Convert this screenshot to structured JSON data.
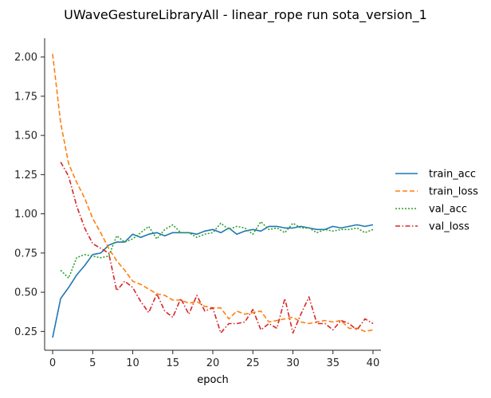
{
  "chart_data": {
    "type": "line",
    "title": "UWaveGestureLibraryAll - linear_rope run sota_version_1",
    "xlabel": "epoch",
    "ylabel": "",
    "xlim": [
      -1,
      41
    ],
    "ylim": [
      0.13,
      2.12
    ],
    "xticks": [
      0,
      5,
      10,
      15,
      20,
      25,
      30,
      35,
      40
    ],
    "yticks": [
      0.25,
      0.5,
      0.75,
      1.0,
      1.25,
      1.5,
      1.75,
      2.0
    ],
    "ytick_labels": [
      "0.25",
      "0.50",
      "0.75",
      "1.00",
      "1.25",
      "1.50",
      "1.75",
      "2.00"
    ],
    "grid": false,
    "legend_position": "right",
    "series": [
      {
        "name": "train_acc",
        "color": "#1f77b4",
        "dash": "solid",
        "x": [
          0,
          1,
          2,
          3,
          4,
          5,
          6,
          7,
          8,
          9,
          10,
          11,
          12,
          13,
          14,
          15,
          16,
          17,
          18,
          19,
          20,
          21,
          22,
          23,
          24,
          25,
          26,
          27,
          28,
          29,
          30,
          31,
          32,
          33,
          34,
          35,
          36,
          37,
          38,
          39,
          40
        ],
        "values": [
          0.21,
          0.46,
          0.53,
          0.61,
          0.67,
          0.74,
          0.75,
          0.8,
          0.82,
          0.82,
          0.87,
          0.85,
          0.87,
          0.88,
          0.86,
          0.88,
          0.88,
          0.88,
          0.87,
          0.89,
          0.9,
          0.88,
          0.91,
          0.87,
          0.89,
          0.9,
          0.89,
          0.92,
          0.92,
          0.91,
          0.91,
          0.92,
          0.91,
          0.9,
          0.9,
          0.92,
          0.91,
          0.92,
          0.93,
          0.92,
          0.93
        ]
      },
      {
        "name": "train_loss",
        "color": "#ff7f0e",
        "dash": "dashed",
        "x": [
          0,
          1,
          2,
          3,
          4,
          5,
          6,
          7,
          8,
          9,
          10,
          11,
          12,
          13,
          14,
          15,
          16,
          17,
          18,
          19,
          20,
          21,
          22,
          23,
          24,
          25,
          26,
          27,
          28,
          29,
          30,
          31,
          32,
          33,
          34,
          35,
          36,
          37,
          38,
          39,
          40
        ],
        "values": [
          2.02,
          1.58,
          1.32,
          1.2,
          1.1,
          0.97,
          0.88,
          0.78,
          0.7,
          0.64,
          0.57,
          0.55,
          0.52,
          0.49,
          0.48,
          0.45,
          0.45,
          0.43,
          0.44,
          0.41,
          0.4,
          0.4,
          0.33,
          0.38,
          0.36,
          0.37,
          0.38,
          0.31,
          0.32,
          0.33,
          0.34,
          0.31,
          0.3,
          0.31,
          0.32,
          0.31,
          0.32,
          0.27,
          0.27,
          0.25,
          0.26
        ]
      },
      {
        "name": "val_acc",
        "color": "#2ca02c",
        "dash": "dotted",
        "x": [
          1,
          2,
          3,
          4,
          5,
          6,
          7,
          8,
          9,
          10,
          11,
          12,
          13,
          14,
          15,
          16,
          17,
          18,
          19,
          20,
          21,
          22,
          23,
          24,
          25,
          26,
          27,
          28,
          29,
          30,
          31,
          32,
          33,
          34,
          35,
          36,
          37,
          38,
          39,
          40
        ],
        "values": [
          0.64,
          0.59,
          0.72,
          0.74,
          0.73,
          0.72,
          0.73,
          0.86,
          0.82,
          0.84,
          0.88,
          0.92,
          0.84,
          0.9,
          0.93,
          0.88,
          0.88,
          0.85,
          0.87,
          0.88,
          0.94,
          0.9,
          0.92,
          0.91,
          0.87,
          0.95,
          0.9,
          0.91,
          0.88,
          0.94,
          0.91,
          0.91,
          0.88,
          0.9,
          0.89,
          0.9,
          0.9,
          0.91,
          0.88,
          0.9
        ]
      },
      {
        "name": "val_loss",
        "color": "#d62728",
        "dash": "dashdot",
        "x": [
          1,
          2,
          3,
          4,
          5,
          6,
          7,
          8,
          9,
          10,
          11,
          12,
          13,
          14,
          15,
          16,
          17,
          18,
          19,
          20,
          21,
          22,
          23,
          24,
          25,
          26,
          27,
          28,
          29,
          30,
          31,
          32,
          33,
          34,
          35,
          36,
          37,
          38,
          39,
          40
        ],
        "values": [
          1.33,
          1.24,
          1.05,
          0.91,
          0.81,
          0.78,
          0.75,
          0.51,
          0.57,
          0.53,
          0.44,
          0.37,
          0.49,
          0.38,
          0.34,
          0.46,
          0.36,
          0.48,
          0.38,
          0.4,
          0.24,
          0.3,
          0.3,
          0.31,
          0.39,
          0.26,
          0.3,
          0.27,
          0.46,
          0.24,
          0.36,
          0.47,
          0.3,
          0.3,
          0.26,
          0.32,
          0.3,
          0.26,
          0.33,
          0.3
        ]
      }
    ]
  }
}
